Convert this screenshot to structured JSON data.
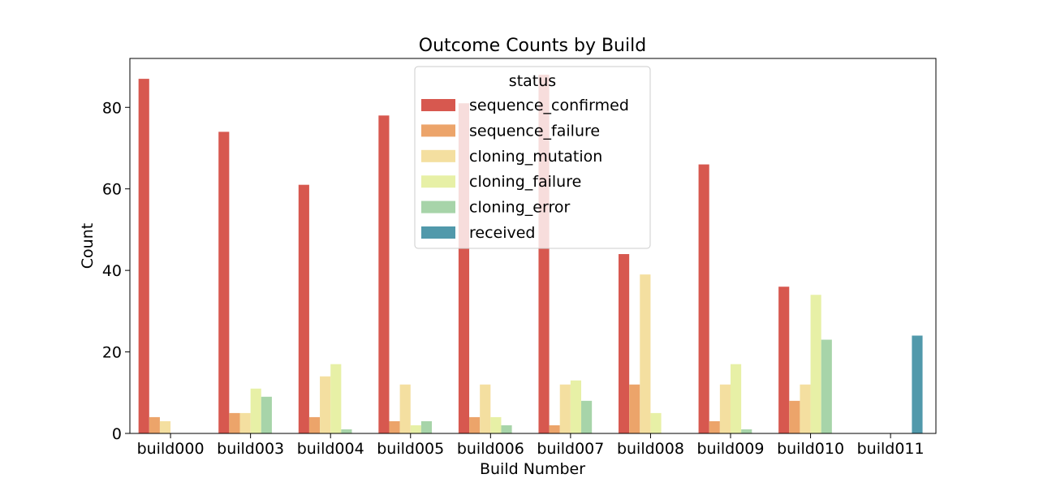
{
  "chart_data": {
    "type": "bar",
    "title": "Outcome Counts by Build",
    "xlabel": "Build Number",
    "ylabel": "Count",
    "ylim": [
      0,
      92
    ],
    "yticks": [
      0,
      20,
      40,
      60,
      80
    ],
    "grid": false,
    "legend": {
      "title": "status",
      "placement": "top-center"
    },
    "categories": [
      "build000",
      "build003",
      "build004",
      "build005",
      "build006",
      "build007",
      "build008",
      "build009",
      "build010",
      "build011"
    ],
    "series": [
      {
        "name": "sequence_confirmed",
        "color": "#d7584f",
        "values": [
          87,
          74,
          61,
          78,
          81,
          88,
          44,
          66,
          36,
          0
        ]
      },
      {
        "name": "sequence_failure",
        "color": "#eca46a",
        "values": [
          4,
          5,
          4,
          3,
          4,
          2,
          12,
          3,
          8,
          0
        ]
      },
      {
        "name": "cloning_mutation",
        "color": "#f4dfa0",
        "values": [
          3,
          5,
          14,
          12,
          12,
          12,
          39,
          12,
          12,
          0
        ]
      },
      {
        "name": "cloning_failure",
        "color": "#e7f0a6",
        "values": [
          0,
          11,
          17,
          2,
          4,
          13,
          5,
          17,
          34,
          0
        ]
      },
      {
        "name": "cloning_error",
        "color": "#a7d4a9",
        "values": [
          0,
          9,
          1,
          3,
          2,
          8,
          0,
          1,
          23,
          0
        ]
      },
      {
        "name": "received",
        "color": "#5199ab",
        "values": [
          0,
          0,
          0,
          0,
          0,
          0,
          0,
          0,
          0,
          24
        ]
      }
    ]
  }
}
